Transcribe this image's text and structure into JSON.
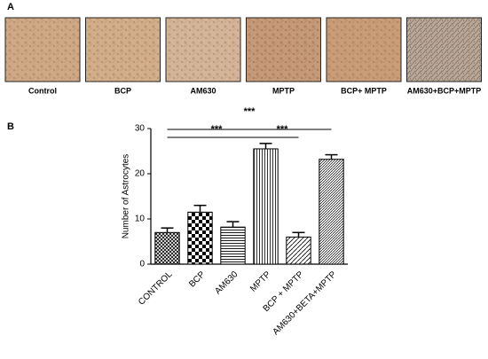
{
  "panel_a": {
    "label": "A",
    "captions": [
      "Control",
      "BCP",
      "AM630",
      "MPTP",
      "BCP+ MPTP",
      "AM630+BCP+MPTP"
    ]
  },
  "panel_b": {
    "label": "B"
  },
  "chart_data": {
    "type": "bar",
    "ylabel": "Number of Astrocytes",
    "categories": [
      "CONTROL",
      "BCP",
      "AM630",
      "MPTP",
      "BCP + MPTP",
      "AM630+BETA+MPTP"
    ],
    "values": [
      7,
      11.5,
      8.2,
      25.5,
      6,
      23.2
    ],
    "errors": [
      1,
      1.5,
      1.2,
      1.2,
      1,
      1
    ],
    "ylim": [
      0,
      30
    ],
    "yticks": [
      0,
      10,
      20,
      30
    ],
    "annotations": [
      "***",
      "***",
      "***"
    ]
  }
}
